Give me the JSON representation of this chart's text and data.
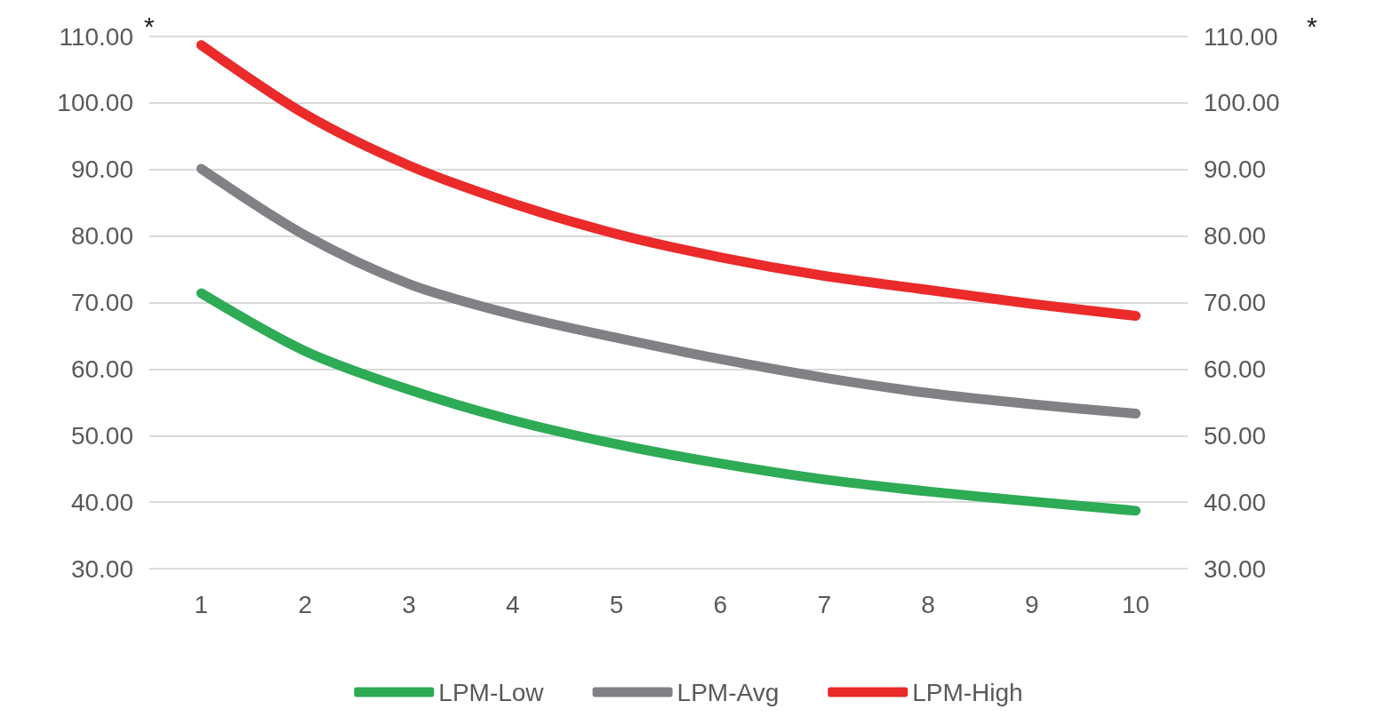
{
  "chart_data": {
    "type": "line",
    "categories": [
      "1",
      "2",
      "3",
      "4",
      "5",
      "6",
      "7",
      "8",
      "9",
      "10"
    ],
    "series": [
      {
        "name": "LPM-Low",
        "color": "#2eab55",
        "values": [
          71.4,
          62.7,
          56.9,
          52.3,
          48.7,
          45.8,
          43.4,
          41.6,
          40.1,
          38.7
        ]
      },
      {
        "name": "LPM-Avg",
        "color": "#808085",
        "values": [
          90.1,
          80.1,
          72.8,
          68.2,
          64.7,
          61.5,
          58.7,
          56.4,
          54.7,
          53.3
        ]
      },
      {
        "name": "LPM-High",
        "color": "#eb2a2a",
        "values": [
          108.7,
          98.3,
          90.6,
          84.9,
          80.3,
          76.8,
          74.0,
          71.9,
          69.8,
          68.0
        ]
      }
    ],
    "ylim": [
      30,
      110
    ],
    "yticks": [
      {
        "value": 30,
        "label": "30.00"
      },
      {
        "value": 40,
        "label": "40.00"
      },
      {
        "value": 50,
        "label": "50.00"
      },
      {
        "value": 60,
        "label": "60.00"
      },
      {
        "value": 70,
        "label": "70.00"
      },
      {
        "value": 80,
        "label": "80.00"
      },
      {
        "value": 90,
        "label": "90.00"
      },
      {
        "value": 100,
        "label": "100.00"
      },
      {
        "value": 110,
        "label": "110.00"
      }
    ],
    "y2lim": [
      30,
      110
    ],
    "y2ticks": [
      {
        "value": 30,
        "label": "30.00"
      },
      {
        "value": 40,
        "label": "40.00"
      },
      {
        "value": 50,
        "label": "50.00"
      },
      {
        "value": 60,
        "label": "60.00"
      },
      {
        "value": 70,
        "label": "70.00"
      },
      {
        "value": 80,
        "label": "80.00"
      },
      {
        "value": 90,
        "label": "90.00"
      },
      {
        "value": 100,
        "label": "100.00"
      },
      {
        "value": 110,
        "label": "110.00"
      }
    ],
    "annotations": [
      "*",
      "*"
    ],
    "grid": "y",
    "legend": "bottom",
    "line_style": "solid"
  }
}
